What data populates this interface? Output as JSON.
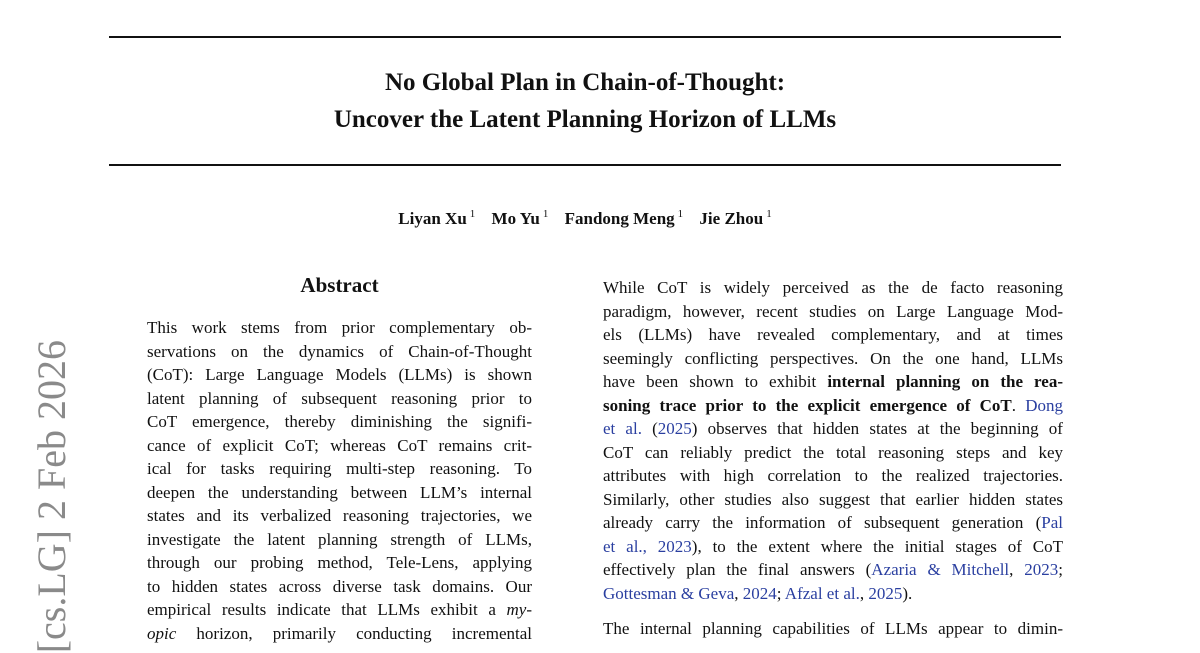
{
  "title_lines": [
    "No Global Plan in Chain-of-Thought:",
    "Uncover the Latent Planning Horizon of LLMs"
  ],
  "authors": [
    {
      "name": "Liyan Xu",
      "aff": "1"
    },
    {
      "name": "Mo Yu",
      "aff": "1"
    },
    {
      "name": "Fandong Meng",
      "aff": "1"
    },
    {
      "name": "Jie Zhou",
      "aff": "1"
    }
  ],
  "arxiv_stamp": "[cs.LG]  2 Feb 2026",
  "abstract": {
    "heading": "Abstract",
    "lines": [
      [
        {
          "t": "This work stems from prior complementary ob-"
        }
      ],
      [
        {
          "t": "servations on the dynamics of Chain-of-Thought"
        }
      ],
      [
        {
          "t": "(CoT): Large Language Models (LLMs) is shown"
        }
      ],
      [
        {
          "t": "latent planning of subsequent reasoning prior to"
        }
      ],
      [
        {
          "t": "CoT emergence, thereby diminishing the signifi-"
        }
      ],
      [
        {
          "t": "cance of explicit CoT; whereas CoT remains crit-"
        }
      ],
      [
        {
          "t": "ical for tasks requiring multi-step reasoning. To"
        }
      ],
      [
        {
          "t": "deepen the understanding between LLM’s internal"
        }
      ],
      [
        {
          "t": "states and its verbalized reasoning trajectories, we"
        }
      ],
      [
        {
          "t": "investigate the latent planning strength of LLMs,"
        }
      ],
      [
        {
          "t": "through our probing method, Tele-Lens, applying"
        }
      ],
      [
        {
          "t": "to hidden states across diverse task domains. Our"
        }
      ],
      [
        {
          "t": "empirical results indicate that LLMs exhibit a "
        },
        {
          "t": "my-",
          "s": "i"
        }
      ],
      [
        {
          "t": "opic",
          "s": "i"
        },
        {
          "t": " horizon, primarily conducting incremental"
        }
      ]
    ]
  },
  "intro": {
    "paragraphs": [
      [
        [
          {
            "t": "While CoT is widely perceived as the de facto reasoning"
          }
        ],
        [
          {
            "t": "paradigm, however, recent studies on Large Language Mod-"
          }
        ],
        [
          {
            "t": "els (LLMs) have revealed complementary, and at times"
          }
        ],
        [
          {
            "t": "seemingly conflicting perspectives. On the one hand, LLMs"
          }
        ],
        [
          {
            "t": "have been shown to exhibit "
          },
          {
            "t": "internal planning on the rea-",
            "s": "b"
          }
        ],
        [
          {
            "t": "soning trace prior to the explicit emergence of CoT",
            "s": "b"
          },
          {
            "t": ". "
          },
          {
            "t": "Dong",
            "s": "link"
          }
        ],
        [
          {
            "t": "et al.",
            "s": "link"
          },
          {
            "t": " ("
          },
          {
            "t": "2025",
            "s": "link"
          },
          {
            "t": ") observes that hidden states at the beginning of"
          }
        ],
        [
          {
            "t": "CoT can reliably predict the total reasoning steps and key"
          }
        ],
        [
          {
            "t": "attributes with high correlation to the realized trajectories."
          }
        ],
        [
          {
            "t": "Similarly, other studies also suggest that earlier hidden states"
          }
        ],
        [
          {
            "t": "already carry the information of subsequent generation ("
          },
          {
            "t": "Pal",
            "s": "link"
          }
        ],
        [
          {
            "t": "et al., 2023",
            "s": "link"
          },
          {
            "t": "), to the extent where the initial stages of CoT"
          }
        ],
        [
          {
            "t": "effectively plan the final answers ("
          },
          {
            "t": "Azaria & Mitchell",
            "s": "link"
          },
          {
            "t": ", "
          },
          {
            "t": "2023",
            "s": "link"
          },
          {
            "t": ";"
          }
        ],
        [
          {
            "t": "Gottesman & Geva",
            "s": "link"
          },
          {
            "t": ", "
          },
          {
            "t": "2024",
            "s": "link"
          },
          {
            "t": "; "
          },
          {
            "t": "Afzal et al.",
            "s": "link"
          },
          {
            "t": ", "
          },
          {
            "t": "2025",
            "s": "link"
          },
          {
            "t": ")."
          }
        ]
      ],
      [
        [
          {
            "t": "The internal planning capabilities of LLMs appear to dimin-"
          }
        ]
      ]
    ]
  }
}
